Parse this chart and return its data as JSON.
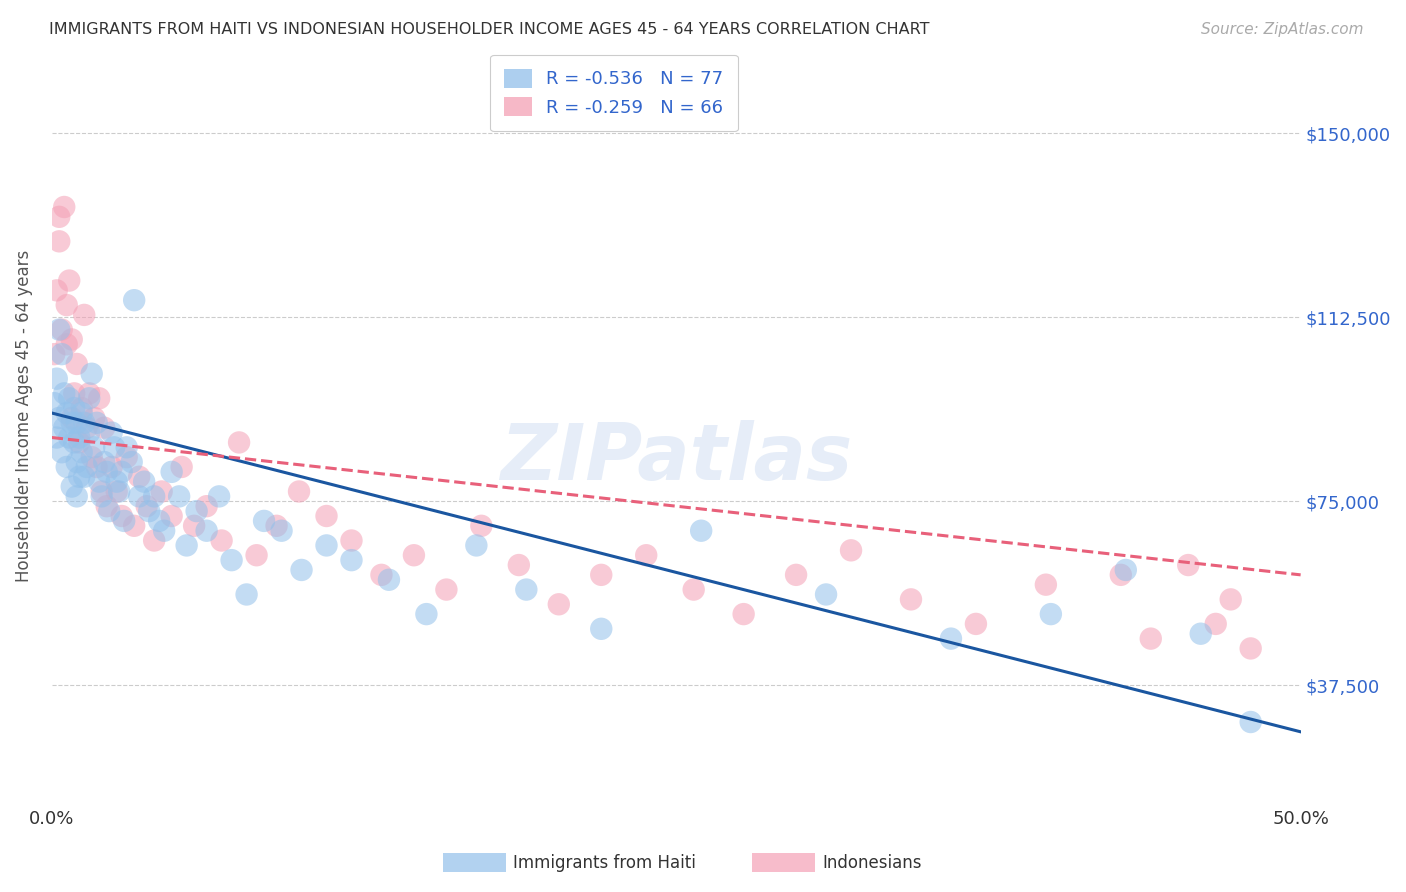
{
  "title": "IMMIGRANTS FROM HAITI VS INDONESIAN HOUSEHOLDER INCOME AGES 45 - 64 YEARS CORRELATION CHART",
  "source": "Source: ZipAtlas.com",
  "ylabel": "Householder Income Ages 45 - 64 years",
  "ytick_labels": [
    "$37,500",
    "$75,000",
    "$112,500",
    "$150,000"
  ],
  "ytick_values": [
    37500,
    75000,
    112500,
    150000
  ],
  "ylim": [
    20000,
    165000
  ],
  "xlim": [
    0.0,
    0.5
  ],
  "haiti_color": "#92C0EA",
  "indonesian_color": "#F4A0B5",
  "haiti_line_color": "#1A56A0",
  "indonesian_line_color": "#E8607A",
  "haiti_R": -0.536,
  "haiti_N": 77,
  "indonesian_R": -0.259,
  "indonesian_N": 66,
  "watermark": "ZIPatlas",
  "haiti_scatter_x": [
    0.001,
    0.002,
    0.002,
    0.003,
    0.003,
    0.004,
    0.004,
    0.005,
    0.005,
    0.006,
    0.006,
    0.007,
    0.007,
    0.008,
    0.008,
    0.009,
    0.009,
    0.01,
    0.01,
    0.01,
    0.011,
    0.011,
    0.012,
    0.012,
    0.013,
    0.013,
    0.014,
    0.015,
    0.015,
    0.016,
    0.017,
    0.018,
    0.019,
    0.02,
    0.021,
    0.022,
    0.023,
    0.024,
    0.025,
    0.026,
    0.027,
    0.028,
    0.029,
    0.03,
    0.032,
    0.033,
    0.035,
    0.037,
    0.039,
    0.041,
    0.043,
    0.045,
    0.048,
    0.051,
    0.054,
    0.058,
    0.062,
    0.067,
    0.072,
    0.078,
    0.085,
    0.092,
    0.1,
    0.11,
    0.12,
    0.135,
    0.15,
    0.17,
    0.19,
    0.22,
    0.26,
    0.31,
    0.36,
    0.4,
    0.43,
    0.46,
    0.48
  ],
  "haiti_scatter_y": [
    95000,
    100000,
    88000,
    110000,
    92000,
    105000,
    85000,
    97000,
    90000,
    93000,
    82000,
    96000,
    88000,
    91000,
    78000,
    87000,
    94000,
    83000,
    76000,
    91000,
    88000,
    80000,
    93000,
    85000,
    80000,
    91000,
    82000,
    96000,
    89000,
    101000,
    86000,
    91000,
    79000,
    76000,
    83000,
    81000,
    73000,
    89000,
    86000,
    79000,
    77000,
    81000,
    71000,
    86000,
    83000,
    116000,
    76000,
    79000,
    73000,
    76000,
    71000,
    69000,
    81000,
    76000,
    66000,
    73000,
    69000,
    76000,
    63000,
    56000,
    71000,
    69000,
    61000,
    66000,
    63000,
    59000,
    52000,
    66000,
    57000,
    49000,
    69000,
    56000,
    47000,
    52000,
    61000,
    48000,
    30000
  ],
  "indonesian_scatter_x": [
    0.001,
    0.002,
    0.003,
    0.003,
    0.004,
    0.005,
    0.006,
    0.006,
    0.007,
    0.008,
    0.008,
    0.009,
    0.01,
    0.011,
    0.012,
    0.013,
    0.014,
    0.015,
    0.016,
    0.017,
    0.018,
    0.019,
    0.02,
    0.021,
    0.022,
    0.024,
    0.026,
    0.028,
    0.03,
    0.033,
    0.035,
    0.038,
    0.041,
    0.044,
    0.048,
    0.052,
    0.057,
    0.062,
    0.068,
    0.075,
    0.082,
    0.09,
    0.099,
    0.11,
    0.12,
    0.132,
    0.145,
    0.158,
    0.172,
    0.187,
    0.203,
    0.22,
    0.238,
    0.257,
    0.277,
    0.298,
    0.32,
    0.344,
    0.37,
    0.398,
    0.428,
    0.44,
    0.455,
    0.466,
    0.472,
    0.48
  ],
  "indonesian_scatter_y": [
    105000,
    118000,
    133000,
    128000,
    110000,
    135000,
    115000,
    107000,
    120000,
    108000,
    92000,
    97000,
    103000,
    87000,
    94000,
    113000,
    90000,
    97000,
    84000,
    92000,
    82000,
    96000,
    77000,
    90000,
    74000,
    82000,
    77000,
    72000,
    84000,
    70000,
    80000,
    74000,
    67000,
    77000,
    72000,
    82000,
    70000,
    74000,
    67000,
    87000,
    64000,
    70000,
    77000,
    72000,
    67000,
    60000,
    64000,
    57000,
    70000,
    62000,
    54000,
    60000,
    64000,
    57000,
    52000,
    60000,
    65000,
    55000,
    50000,
    58000,
    60000,
    47000,
    62000,
    50000,
    55000,
    45000
  ]
}
